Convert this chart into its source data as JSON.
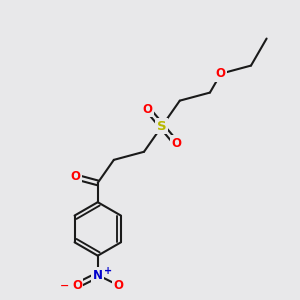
{
  "background_color": "#e8e8ea",
  "bond_color": "#1a1a1a",
  "bond_width": 1.5,
  "S_color": "#b8b800",
  "O_color": "#ff0000",
  "N_color": "#0000cc",
  "figsize": [
    3.0,
    3.0
  ],
  "dpi": 100,
  "xlim": [
    0,
    10
  ],
  "ylim": [
    0,
    10
  ]
}
